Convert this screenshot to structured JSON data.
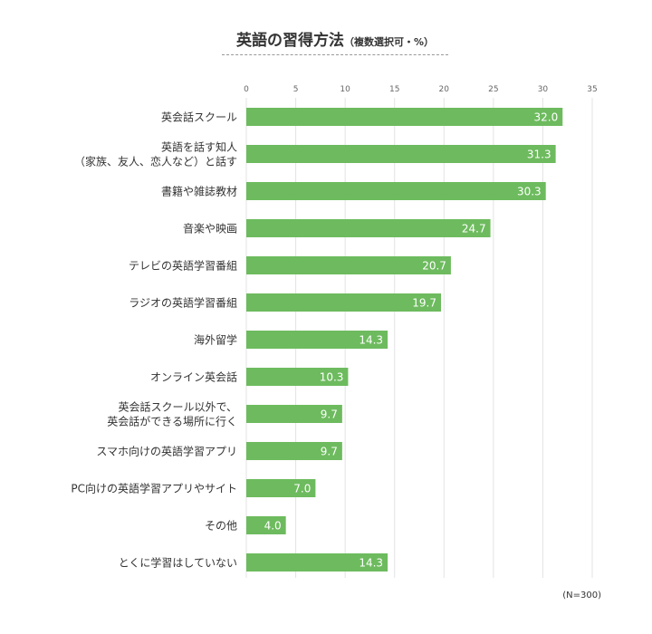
{
  "title": {
    "main": "英語の習得方法",
    "sub": "（複数選択可・%）"
  },
  "note": "(N=300)",
  "colors": {
    "bar": "#6dbb5e",
    "value_label": "#ffffff",
    "grid": "#e3e3e3",
    "text": "#333333"
  },
  "chart_data": {
    "type": "bar",
    "orientation": "horizontal",
    "categories": [
      [
        "英会話スクール"
      ],
      [
        "英語を話す知人",
        "（家族、友人、恋人など）と話す"
      ],
      [
        "書籍や雑誌教材"
      ],
      [
        "音楽や映画"
      ],
      [
        "テレビの英語学習番組"
      ],
      [
        "ラジオの英語学習番組"
      ],
      [
        "海外留学"
      ],
      [
        "オンライン英会話"
      ],
      [
        "英会話スクール以外で、",
        "英会話ができる場所に行く"
      ],
      [
        "スマホ向けの英語学習アプリ"
      ],
      [
        "PC向けの英語学習アプリやサイト"
      ],
      [
        "その他"
      ],
      [
        "とくに学習はしていない"
      ]
    ],
    "values": [
      32.0,
      31.3,
      30.3,
      24.7,
      20.7,
      19.7,
      14.3,
      10.3,
      9.7,
      9.7,
      7.0,
      4.0,
      14.3
    ],
    "value_labels": [
      "32.0",
      "31.3",
      "30.3",
      "24.7",
      "20.7",
      "19.7",
      "14.3",
      "10.3",
      "9.7",
      "9.7",
      "7.0",
      "4.0",
      "14.3"
    ],
    "xlim": [
      0,
      35
    ],
    "ticks": [
      0,
      5,
      10,
      15,
      20,
      25,
      30,
      35
    ],
    "tick_labels": [
      "0",
      "5",
      "10",
      "15",
      "20",
      "25",
      "30",
      "35"
    ],
    "grid": true,
    "legend": "none"
  }
}
